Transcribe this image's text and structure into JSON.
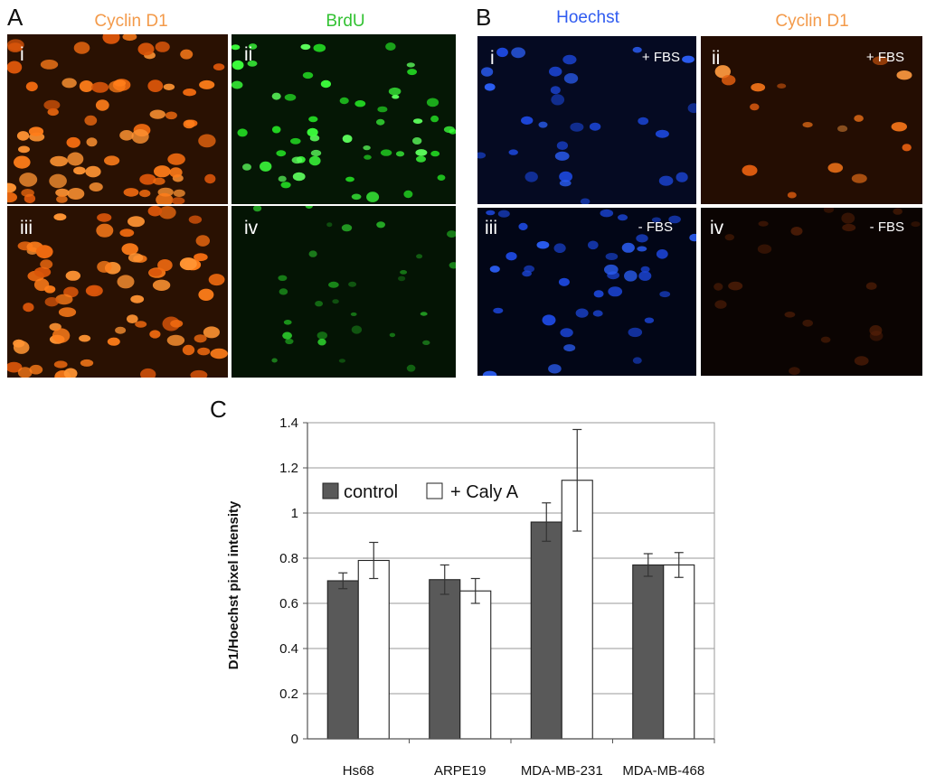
{
  "panelA": {
    "letter": "A",
    "channels": [
      {
        "label": "Cyclin D1",
        "color": "#f39a4a"
      },
      {
        "label": "BrdU",
        "color": "#33c233"
      }
    ],
    "images": [
      {
        "numeral": "i",
        "stain": "orange",
        "count": 70,
        "seed": 11
      },
      {
        "numeral": "ii",
        "stain": "green",
        "count": 55,
        "seed": 23
      },
      {
        "numeral": "iii",
        "stain": "orange",
        "count": 70,
        "seed": 37
      },
      {
        "numeral": "iv",
        "stain": "green-dim",
        "count": 30,
        "seed": 41
      }
    ]
  },
  "panelB": {
    "letter": "B",
    "channels": [
      {
        "label": "Hoechst",
        "color": "#2f5bf0"
      },
      {
        "label": "Cyclin D1",
        "color": "#f39a4a"
      }
    ],
    "images": [
      {
        "numeral": "i",
        "condition": "+ FBS",
        "stain": "blue",
        "count": 28,
        "seed": 53
      },
      {
        "numeral": "ii",
        "condition": "+ FBS",
        "stain": "orange-sparse",
        "count": 16,
        "seed": 67
      },
      {
        "numeral": "iii",
        "condition": "- FBS",
        "stain": "blue",
        "count": 40,
        "seed": 71
      },
      {
        "numeral": "iv",
        "condition": "- FBS",
        "stain": "orange-faint",
        "count": 20,
        "seed": 83
      }
    ]
  },
  "panelC": {
    "letter": "C"
  },
  "chart_data": {
    "type": "bar",
    "title": "",
    "xlabel": "",
    "ylabel": "D1/Hoechst pixel intensity",
    "categories": [
      "Hs68",
      "ARPE19",
      "MDA-MB-231",
      "MDA-MB-468"
    ],
    "series": [
      {
        "name": "control",
        "color": "#595959",
        "values": [
          0.7,
          0.705,
          0.96,
          0.77
        ],
        "errors": [
          0.035,
          0.065,
          0.085,
          0.05
        ]
      },
      {
        "name": "+ Caly A",
        "color": "#ffffff",
        "values": [
          0.79,
          0.655,
          1.145,
          0.77
        ],
        "errors": [
          0.08,
          0.055,
          0.225,
          0.055
        ]
      }
    ],
    "ylim": [
      0,
      1.4
    ],
    "yticks": [
      0,
      0.2,
      0.4,
      0.6,
      0.8,
      1,
      1.2,
      1.4
    ],
    "ytick_labels": [
      "0",
      "0.2",
      "0.4",
      "0.6",
      "0.8",
      "1",
      "1.2",
      "1.4"
    ],
    "grid": true,
    "legend_position": "upper-left"
  }
}
